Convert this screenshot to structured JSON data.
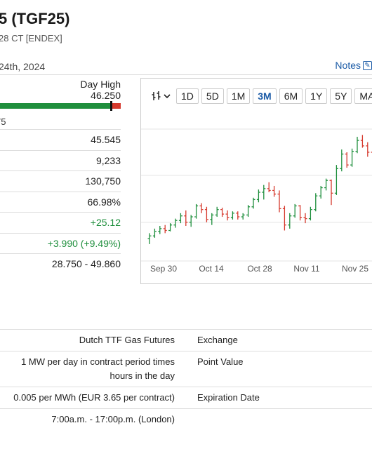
{
  "header": {
    "title": "5 (TGF25)",
    "subtitle": "28 CT [ENDEX]",
    "date": "24th, 2024",
    "notes_label": "Notes"
  },
  "day_range": {
    "high_label": "Day High",
    "high_value": "46.250",
    "low_fragment": "75",
    "position_fraction": 0.92
  },
  "stats": [
    "45.545",
    "9,233",
    "130,750",
    "66.98%",
    "+25.12",
    "+3.990 (+9.49%)",
    "28.750 - 49.860"
  ],
  "chart_toolbar": {
    "chart_type_icon": "candlestick-icon",
    "ranges": [
      "1D",
      "5D",
      "1M",
      "3M",
      "6M",
      "1Y",
      "5Y",
      "MAX"
    ],
    "active_range": "3M"
  },
  "chart_data": {
    "type": "ohlc",
    "x_labels": [
      "Sep 30",
      "Oct 14",
      "Oct 28",
      "Nov 11",
      "Nov 25"
    ],
    "bars": [
      [
        35.8,
        36.4,
        35.2,
        36.1
      ],
      [
        36.1,
        36.9,
        35.9,
        36.6
      ],
      [
        36.6,
        37.2,
        36.3,
        36.9
      ],
      [
        36.9,
        37.3,
        36.4,
        36.7
      ],
      [
        36.7,
        37.5,
        36.6,
        37.3
      ],
      [
        37.3,
        38.0,
        37.0,
        37.8
      ],
      [
        37.8,
        38.6,
        37.5,
        38.3
      ],
      [
        38.3,
        38.9,
        37.2,
        37.6
      ],
      [
        37.6,
        38.4,
        37.1,
        38.2
      ],
      [
        38.2,
        39.6,
        38.0,
        39.4
      ],
      [
        39.4,
        39.7,
        38.6,
        39.0
      ],
      [
        39.0,
        39.3,
        37.6,
        37.9
      ],
      [
        37.9,
        38.6,
        37.3,
        38.4
      ],
      [
        38.4,
        39.3,
        38.2,
        39.0
      ],
      [
        39.0,
        39.2,
        38.2,
        38.5
      ],
      [
        38.5,
        38.9,
        37.8,
        38.1
      ],
      [
        38.1,
        38.8,
        37.9,
        38.6
      ],
      [
        38.6,
        38.8,
        37.9,
        38.2
      ],
      [
        38.2,
        38.6,
        37.9,
        38.4
      ],
      [
        38.4,
        39.5,
        38.2,
        39.3
      ],
      [
        39.3,
        40.3,
        39.1,
        40.1
      ],
      [
        40.1,
        41.2,
        39.8,
        40.9
      ],
      [
        40.9,
        41.7,
        40.1,
        41.3
      ],
      [
        41.3,
        42.0,
        40.9,
        41.1
      ],
      [
        41.1,
        41.6,
        40.4,
        40.7
      ],
      [
        40.7,
        41.1,
        38.7,
        39.1
      ],
      [
        39.1,
        39.4,
        36.7,
        37.3
      ],
      [
        37.3,
        38.6,
        36.9,
        38.3
      ],
      [
        38.3,
        39.6,
        38.1,
        39.4
      ],
      [
        39.4,
        39.5,
        37.8,
        38.1
      ],
      [
        38.1,
        38.6,
        37.5,
        38.0
      ],
      [
        38.0,
        39.3,
        37.8,
        39.0
      ],
      [
        39.0,
        40.8,
        38.8,
        40.5
      ],
      [
        40.5,
        41.6,
        40.2,
        41.4
      ],
      [
        41.4,
        42.4,
        41.1,
        42.2
      ],
      [
        42.2,
        42.3,
        39.5,
        40.8
      ],
      [
        40.8,
        43.9,
        40.6,
        43.5
      ],
      [
        43.5,
        45.6,
        43.2,
        45.1
      ],
      [
        45.1,
        45.3,
        43.6,
        43.9
      ],
      [
        43.9,
        45.7,
        43.7,
        45.4
      ],
      [
        45.4,
        47.0,
        45.2,
        46.6
      ],
      [
        46.6,
        47.2,
        45.8,
        46.0
      ],
      [
        46.0,
        46.4,
        44.8,
        45.3
      ],
      [
        45.3,
        45.6,
        44.4,
        44.9
      ]
    ],
    "ylim": [
      34.5,
      48
    ]
  },
  "specs": [
    {
      "left": "Dutch TTF Gas Futures",
      "right": "Exchange"
    },
    {
      "left": "1 MW per day in contract period times hours in the day",
      "right": "Point Value"
    },
    {
      "left": "0.005 per MWh (EUR 3.65 per contract)",
      "right": "Expiration Date"
    },
    {
      "left": "7:00a.m. - 17:00p.m. (London)",
      "right": ""
    }
  ],
  "colors": {
    "up": "#1f8f3d",
    "down": "#d63a2e",
    "accent": "#1a5aa6"
  }
}
